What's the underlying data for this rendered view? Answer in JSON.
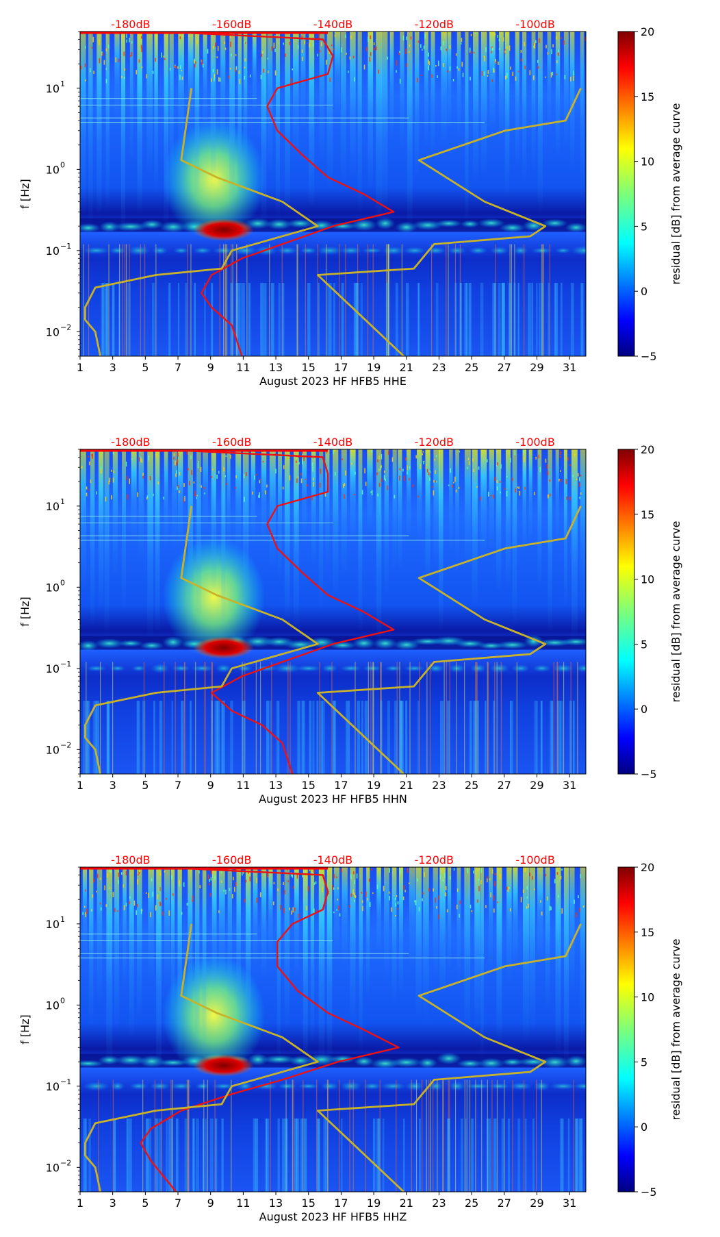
{
  "chart_data": [
    {
      "type": "heatmap",
      "title": "",
      "xlabel": "August 2023 HF HFB5  HHE",
      "ylabel": "f [Hz]",
      "x_ticks": [
        "1",
        "3",
        "5",
        "7",
        "9",
        "11",
        "13",
        "15",
        "17",
        "19",
        "21",
        "23",
        "25",
        "27",
        "29",
        "31"
      ],
      "x_range": [
        1,
        32
      ],
      "y_scale": "log",
      "y_range": [
        0.005,
        50
      ],
      "y_ticks": [
        {
          "value": 0.01,
          "base": "10",
          "exp": "−2"
        },
        {
          "value": 0.1,
          "base": "10",
          "exp": "−1"
        },
        {
          "value": 1,
          "base": "10",
          "exp": "0"
        },
        {
          "value": 10,
          "base": "10",
          "exp": "1"
        }
      ],
      "top_ticks": [
        "-180dB",
        "-160dB",
        "-140dB",
        "-120dB",
        "-100dB"
      ],
      "colorbar": {
        "label": "residual [dB] from average curve",
        "ticks": [
          "20",
          "15",
          "10",
          "5",
          "0",
          "−5"
        ],
        "range": [
          -5,
          20
        ]
      },
      "colors": {
        "red_curve": "#ee1111",
        "noise_model": "#c8b22a",
        "top_tick_text": "#ff0000"
      },
      "series": [
        {
          "name": "mean PSD",
          "color": "red",
          "points": [
            [
              50,
              -175
            ],
            [
              40,
              -142
            ],
            [
              25,
              -140
            ],
            [
              15,
              -141
            ],
            [
              10,
              -151
            ],
            [
              6,
              -153
            ],
            [
              3,
              -151
            ],
            [
              1.5,
              -146
            ],
            [
              0.8,
              -141
            ],
            [
              0.5,
              -134
            ],
            [
              0.3,
              -128
            ],
            [
              0.2,
              -140
            ],
            [
              0.12,
              -150
            ],
            [
              0.08,
              -158
            ],
            [
              0.05,
              -164
            ],
            [
              0.03,
              -166
            ],
            [
              0.02,
              -164
            ],
            [
              0.012,
              -160
            ],
            [
              0.005,
              -158
            ]
          ]
        },
        {
          "name": "noise model low",
          "color": "gold",
          "points": [
            [
              10,
              -168
            ],
            [
              1.3,
              -170
            ],
            [
              0.8,
              -163
            ],
            [
              0.4,
              -150
            ],
            [
              0.2,
              -143
            ],
            [
              0.1,
              -160
            ],
            [
              0.06,
              -162
            ],
            [
              0.05,
              -175
            ],
            [
              0.035,
              -187
            ],
            [
              0.02,
              -189
            ],
            [
              0.014,
              -189
            ],
            [
              0.01,
              -187
            ],
            [
              0.005,
              -186
            ]
          ]
        },
        {
          "name": "noise model high",
          "color": "gold",
          "points": [
            [
              10,
              -91
            ],
            [
              4,
              -94
            ],
            [
              3,
              -106
            ],
            [
              1.3,
              -123
            ],
            [
              0.4,
              -110
            ],
            [
              0.2,
              -98
            ],
            [
              0.15,
              -101
            ],
            [
              0.12,
              -120
            ],
            [
              0.06,
              -124
            ],
            [
              0.05,
              -143
            ],
            [
              0.005,
              -126
            ]
          ]
        }
      ]
    },
    {
      "type": "heatmap",
      "title": "",
      "xlabel": "August 2023 HF HFB5  HHN",
      "ylabel": "f [Hz]",
      "x_ticks": [
        "1",
        "3",
        "5",
        "7",
        "9",
        "11",
        "13",
        "15",
        "17",
        "19",
        "21",
        "23",
        "25",
        "27",
        "29",
        "31"
      ],
      "x_range": [
        1,
        32
      ],
      "y_scale": "log",
      "y_range": [
        0.005,
        50
      ],
      "y_ticks": [
        {
          "value": 0.01,
          "base": "10",
          "exp": "−2"
        },
        {
          "value": 0.1,
          "base": "10",
          "exp": "−1"
        },
        {
          "value": 1,
          "base": "10",
          "exp": "0"
        },
        {
          "value": 10,
          "base": "10",
          "exp": "1"
        }
      ],
      "top_ticks": [
        "-180dB",
        "-160dB",
        "-140dB",
        "-120dB",
        "-100dB"
      ],
      "colorbar": {
        "label": "residual [dB] from average curve",
        "ticks": [
          "20",
          "15",
          "10",
          "5",
          "0",
          "−5"
        ],
        "range": [
          -5,
          20
        ]
      },
      "colors": {
        "red_curve": "#ee1111",
        "noise_model": "#c8b22a",
        "top_tick_text": "#ff0000"
      },
      "series": [
        {
          "name": "mean PSD",
          "color": "red",
          "points": [
            [
              50,
              -175
            ],
            [
              40,
              -142
            ],
            [
              25,
              -141
            ],
            [
              15,
              -141
            ],
            [
              10,
              -151
            ],
            [
              6,
              -153
            ],
            [
              3,
              -151
            ],
            [
              1.5,
              -146
            ],
            [
              0.8,
              -141
            ],
            [
              0.5,
              -134
            ],
            [
              0.3,
              -128
            ],
            [
              0.2,
              -140
            ],
            [
              0.12,
              -150
            ],
            [
              0.08,
              -158
            ],
            [
              0.05,
              -164
            ],
            [
              0.03,
              -160
            ],
            [
              0.02,
              -154
            ],
            [
              0.012,
              -150
            ],
            [
              0.005,
              -148
            ]
          ]
        },
        {
          "name": "noise model low",
          "color": "gold",
          "points": [
            [
              10,
              -168
            ],
            [
              1.3,
              -170
            ],
            [
              0.8,
              -163
            ],
            [
              0.4,
              -150
            ],
            [
              0.2,
              -143
            ],
            [
              0.1,
              -160
            ],
            [
              0.06,
              -162
            ],
            [
              0.05,
              -175
            ],
            [
              0.035,
              -187
            ],
            [
              0.02,
              -189
            ],
            [
              0.014,
              -189
            ],
            [
              0.01,
              -187
            ],
            [
              0.005,
              -186
            ]
          ]
        },
        {
          "name": "noise model high",
          "color": "gold",
          "points": [
            [
              10,
              -91
            ],
            [
              4,
              -94
            ],
            [
              3,
              -106
            ],
            [
              1.3,
              -123
            ],
            [
              0.4,
              -110
            ],
            [
              0.2,
              -98
            ],
            [
              0.15,
              -101
            ],
            [
              0.12,
              -120
            ],
            [
              0.06,
              -124
            ],
            [
              0.05,
              -143
            ],
            [
              0.005,
              -126
            ]
          ]
        }
      ]
    },
    {
      "type": "heatmap",
      "title": "",
      "xlabel": "August 2023 HF HFB5  HHZ",
      "ylabel": "f [Hz]",
      "x_ticks": [
        "1",
        "3",
        "5",
        "7",
        "9",
        "11",
        "13",
        "15",
        "17",
        "19",
        "21",
        "23",
        "25",
        "27",
        "29",
        "31"
      ],
      "x_range": [
        1,
        32
      ],
      "y_scale": "log",
      "y_range": [
        0.005,
        50
      ],
      "y_ticks": [
        {
          "value": 0.01,
          "base": "10",
          "exp": "−2"
        },
        {
          "value": 0.1,
          "base": "10",
          "exp": "−1"
        },
        {
          "value": 1,
          "base": "10",
          "exp": "0"
        },
        {
          "value": 10,
          "base": "10",
          "exp": "1"
        }
      ],
      "top_ticks": [
        "-180dB",
        "-160dB",
        "-140dB",
        "-120dB",
        "-100dB"
      ],
      "colorbar": {
        "label": "residual [dB] from average curve",
        "ticks": [
          "20",
          "15",
          "10",
          "5",
          "0",
          "−5"
        ],
        "range": [
          -5,
          20
        ]
      },
      "colors": {
        "red_curve": "#ee1111",
        "noise_model": "#c8b22a",
        "top_tick_text": "#ff0000"
      },
      "series": [
        {
          "name": "mean PSD",
          "color": "red",
          "points": [
            [
              50,
              -175
            ],
            [
              40,
              -142
            ],
            [
              25,
              -141
            ],
            [
              15,
              -142
            ],
            [
              10,
              -148
            ],
            [
              6,
              -151
            ],
            [
              3,
              -151
            ],
            [
              1.5,
              -147
            ],
            [
              0.8,
              -141
            ],
            [
              0.5,
              -134
            ],
            [
              0.3,
              -127
            ],
            [
              0.2,
              -139
            ],
            [
              0.12,
              -150
            ],
            [
              0.08,
              -160
            ],
            [
              0.05,
              -170
            ],
            [
              0.03,
              -176
            ],
            [
              0.02,
              -178
            ],
            [
              0.012,
              -176
            ],
            [
              0.005,
              -171
            ]
          ]
        },
        {
          "name": "noise model low",
          "color": "gold",
          "points": [
            [
              10,
              -168
            ],
            [
              1.3,
              -170
            ],
            [
              0.8,
              -163
            ],
            [
              0.4,
              -150
            ],
            [
              0.2,
              -143
            ],
            [
              0.1,
              -160
            ],
            [
              0.06,
              -162
            ],
            [
              0.05,
              -175
            ],
            [
              0.035,
              -187
            ],
            [
              0.02,
              -189
            ],
            [
              0.014,
              -189
            ],
            [
              0.01,
              -187
            ],
            [
              0.005,
              -186
            ]
          ]
        },
        {
          "name": "noise model high",
          "color": "gold",
          "points": [
            [
              10,
              -91
            ],
            [
              4,
              -94
            ],
            [
              3,
              -106
            ],
            [
              1.3,
              -123
            ],
            [
              0.4,
              -110
            ],
            [
              0.2,
              -98
            ],
            [
              0.15,
              -101
            ],
            [
              0.12,
              -120
            ],
            [
              0.06,
              -124
            ],
            [
              0.05,
              -143
            ],
            [
              0.005,
              -126
            ]
          ]
        }
      ]
    }
  ]
}
